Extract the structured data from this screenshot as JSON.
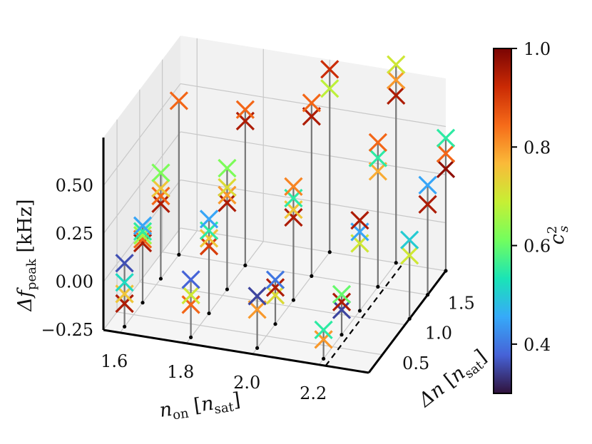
{
  "chart_data": {
    "type": "scatter",
    "projection": "3d",
    "x_label": {
      "main": "n",
      "sub": "on",
      "unit_main": "n",
      "unit_sub": "sat"
    },
    "y_label": {
      "main": "Δn",
      "unit_main": "n",
      "unit_sub": "sat"
    },
    "z_label": {
      "main": "Δf",
      "sub": "peak",
      "unit": "kHz"
    },
    "x_ticks": [
      "1.6",
      "1.8",
      "2.0",
      "2.2"
    ],
    "y_ticks": [
      "0.5",
      "1.0",
      "1.5"
    ],
    "z_ticks": [
      "−0.25",
      "0.00",
      "0.25",
      "0.50"
    ],
    "xlim": [
      1.55,
      2.35
    ],
    "ylim": [
      0.2,
      1.9
    ],
    "zlim": [
      -0.25,
      0.75
    ],
    "colorbar": {
      "label": "c",
      "label_sup": "2",
      "label_sub": "s",
      "ticks": [
        "0.4",
        "0.6",
        "0.8",
        "1.0"
      ],
      "range": [
        0.3,
        1.0
      ],
      "colormap": [
        "#30123b",
        "#4662d7",
        "#36aaf9",
        "#1ae4b6",
        "#72fe5e",
        "#c7ef34",
        "#faba39",
        "#f66b19",
        "#ca2a04",
        "#7a0403"
      ]
    },
    "cut_line": {
      "x": 2.2,
      "y_from": 0.2,
      "y_to": 1.9
    },
    "points": [
      {
        "x": 1.6,
        "y": 0.3,
        "z": -0.13,
        "c": 0.95,
        "label": "stack-1.6-0.3"
      },
      {
        "x": 1.6,
        "y": 0.3,
        "z": -0.08,
        "c": 0.75,
        "label": "stack-1.6-0.3"
      },
      {
        "x": 1.6,
        "y": 0.3,
        "z": -0.02,
        "c": 0.52,
        "label": "stack-1.6-0.3"
      },
      {
        "x": 1.6,
        "y": 0.3,
        "z": 0.08,
        "c": 0.36,
        "label": "stack-1.6-0.3"
      },
      {
        "x": 1.6,
        "y": 0.7,
        "z": 0.06,
        "c": 0.95,
        "label": "stack-1.6-0.7"
      },
      {
        "x": 1.6,
        "y": 0.7,
        "z": 0.08,
        "c": 0.85,
        "label": "stack-1.6-0.7"
      },
      {
        "x": 1.6,
        "y": 0.7,
        "z": 0.1,
        "c": 0.65,
        "label": "stack-1.6-0.7"
      },
      {
        "x": 1.6,
        "y": 0.7,
        "z": 0.12,
        "c": 0.55,
        "label": "stack-1.6-0.7"
      },
      {
        "x": 1.6,
        "y": 0.7,
        "z": 0.15,
        "c": 0.45,
        "label": "stack-1.6-0.7"
      },
      {
        "x": 1.6,
        "y": 1.1,
        "z": 0.14,
        "c": 0.95,
        "label": "stack-1.6-1.1"
      },
      {
        "x": 1.6,
        "y": 1.1,
        "z": 0.18,
        "c": 0.85,
        "label": "stack-1.6-1.1"
      },
      {
        "x": 1.6,
        "y": 1.1,
        "z": 0.22,
        "c": 0.75,
        "label": "stack-1.6-1.1"
      },
      {
        "x": 1.6,
        "y": 1.1,
        "z": 0.3,
        "c": 0.62,
        "label": "stack-1.6-1.1"
      },
      {
        "x": 1.6,
        "y": 1.5,
        "z": 0.55,
        "c": 0.85,
        "label": "stack-1.6-1.5"
      },
      {
        "x": 1.8,
        "y": 0.3,
        "z": -0.08,
        "c": 0.85,
        "label": "stack-1.8-0.3"
      },
      {
        "x": 1.8,
        "y": 0.3,
        "z": -0.03,
        "c": 0.7,
        "label": "stack-1.8-0.3"
      },
      {
        "x": 1.8,
        "y": 0.3,
        "z": 0.05,
        "c": 0.38,
        "label": "stack-1.8-0.3"
      },
      {
        "x": 1.8,
        "y": 0.7,
        "z": 0.1,
        "c": 0.9,
        "label": "stack-1.8-0.7"
      },
      {
        "x": 1.8,
        "y": 0.7,
        "z": 0.14,
        "c": 0.75,
        "label": "stack-1.8-0.7"
      },
      {
        "x": 1.8,
        "y": 0.7,
        "z": 0.18,
        "c": 0.55,
        "label": "stack-1.8-0.7"
      },
      {
        "x": 1.8,
        "y": 0.7,
        "z": 0.24,
        "c": 0.45,
        "label": "stack-1.8-0.7"
      },
      {
        "x": 1.8,
        "y": 1.1,
        "z": 0.2,
        "c": 0.95,
        "label": "stack-1.8-1.1"
      },
      {
        "x": 1.8,
        "y": 1.1,
        "z": 0.24,
        "c": 0.8,
        "label": "stack-1.8-1.1"
      },
      {
        "x": 1.8,
        "y": 1.1,
        "z": 0.28,
        "c": 0.72,
        "label": "stack-1.8-1.1"
      },
      {
        "x": 1.8,
        "y": 1.1,
        "z": 0.38,
        "c": 0.62,
        "label": "stack-1.8-1.1"
      },
      {
        "x": 1.8,
        "y": 1.5,
        "z": 0.5,
        "c": 0.95,
        "label": "stack-1.8-1.5"
      },
      {
        "x": 1.8,
        "y": 1.5,
        "z": 0.56,
        "c": 0.85,
        "label": "stack-1.8-1.5"
      },
      {
        "x": 2.0,
        "y": 0.3,
        "z": -0.05,
        "c": 0.8,
        "label": "stack-2.0-0.3"
      },
      {
        "x": 2.0,
        "y": 0.3,
        "z": 0.02,
        "c": 0.35,
        "label": "stack-2.0-0.3"
      },
      {
        "x": 2.0,
        "y": 0.7,
        "z": -0.1,
        "c": 0.72,
        "label": "stack-2.0-0.7"
      },
      {
        "x": 2.0,
        "y": 0.7,
        "z": -0.06,
        "c": 0.95,
        "label": "stack-2.0-0.7"
      },
      {
        "x": 2.0,
        "y": 0.7,
        "z": -0.02,
        "c": 0.4,
        "label": "stack-2.0-0.7"
      },
      {
        "x": 2.0,
        "y": 1.1,
        "z": 0.18,
        "c": 0.95,
        "label": "stack-2.0-1.1"
      },
      {
        "x": 2.0,
        "y": 1.1,
        "z": 0.22,
        "c": 0.75,
        "label": "stack-2.0-1.1"
      },
      {
        "x": 2.0,
        "y": 1.1,
        "z": 0.28,
        "c": 0.55,
        "label": "stack-2.0-1.1"
      },
      {
        "x": 2.0,
        "y": 1.1,
        "z": 0.34,
        "c": 0.82,
        "label": "stack-2.0-1.1"
      },
      {
        "x": 2.0,
        "y": 1.5,
        "z": 0.58,
        "c": 0.95,
        "label": "stack-2.0-1.5"
      },
      {
        "x": 2.0,
        "y": 1.5,
        "z": 0.65,
        "c": 0.85,
        "label": "stack-2.0-1.5"
      },
      {
        "x": 2.0,
        "y": 1.9,
        "z": 0.6,
        "c": 0.68,
        "label": "stack-2.0-1.9"
      },
      {
        "x": 2.0,
        "y": 1.9,
        "z": 0.7,
        "c": 0.92,
        "label": "stack-2.0-1.9"
      },
      {
        "x": 2.2,
        "y": 0.3,
        "z": -0.15,
        "c": 0.8,
        "label": "stack-2.2-0.3"
      },
      {
        "x": 2.2,
        "y": 0.3,
        "z": -0.1,
        "c": 0.55,
        "label": "stack-2.2-0.3"
      },
      {
        "x": 2.2,
        "y": 0.7,
        "z": -0.12,
        "c": 0.35,
        "label": "stack-2.2-0.7"
      },
      {
        "x": 2.2,
        "y": 0.7,
        "z": -0.08,
        "c": 0.95,
        "label": "stack-2.2-0.7"
      },
      {
        "x": 2.2,
        "y": 0.7,
        "z": -0.04,
        "c": 0.6,
        "label": "stack-2.2-0.7"
      },
      {
        "x": 2.2,
        "y": 1.1,
        "z": 0.1,
        "c": 0.7,
        "label": "stack-2.2-1.1"
      },
      {
        "x": 2.2,
        "y": 1.1,
        "z": 0.16,
        "c": 0.45,
        "label": "stack-2.2-1.1"
      },
      {
        "x": 2.2,
        "y": 1.1,
        "z": 0.22,
        "c": 0.95,
        "label": "stack-2.2-1.1"
      },
      {
        "x": 2.2,
        "y": 1.5,
        "z": 0.35,
        "c": 0.78,
        "label": "stack-2.2-1.5"
      },
      {
        "x": 2.2,
        "y": 1.5,
        "z": 0.42,
        "c": 0.55,
        "label": "stack-2.2-1.5"
      },
      {
        "x": 2.2,
        "y": 1.5,
        "z": 0.5,
        "c": 0.85,
        "label": "stack-2.2-1.5"
      },
      {
        "x": 2.2,
        "y": 1.9,
        "z": 0.62,
        "c": 0.95,
        "label": "stack-2.2-1.9"
      },
      {
        "x": 2.2,
        "y": 1.9,
        "z": 0.7,
        "c": 0.8,
        "label": "stack-2.2-1.9"
      },
      {
        "x": 2.2,
        "y": 1.9,
        "z": 0.78,
        "c": 0.7,
        "label": "stack-2.2-1.9"
      },
      {
        "x": 2.35,
        "y": 1.1,
        "z": 0.08,
        "c": 0.7,
        "label": "stack-2.35-1.1"
      },
      {
        "x": 2.35,
        "y": 1.1,
        "z": 0.16,
        "c": 0.5,
        "label": "stack-2.35-1.1"
      },
      {
        "x": 2.35,
        "y": 1.5,
        "z": 0.22,
        "c": 0.95,
        "label": "stack-2.35-1.5"
      },
      {
        "x": 2.35,
        "y": 1.5,
        "z": 0.32,
        "c": 0.45,
        "label": "stack-2.35-1.5"
      },
      {
        "x": 2.35,
        "y": 1.9,
        "z": 0.28,
        "c": 0.98,
        "label": "stack-2.35-1.9"
      },
      {
        "x": 2.35,
        "y": 1.9,
        "z": 0.36,
        "c": 0.85,
        "label": "stack-2.35-1.9"
      },
      {
        "x": 2.35,
        "y": 1.9,
        "z": 0.44,
        "c": 0.55,
        "label": "stack-2.35-1.9"
      }
    ]
  }
}
